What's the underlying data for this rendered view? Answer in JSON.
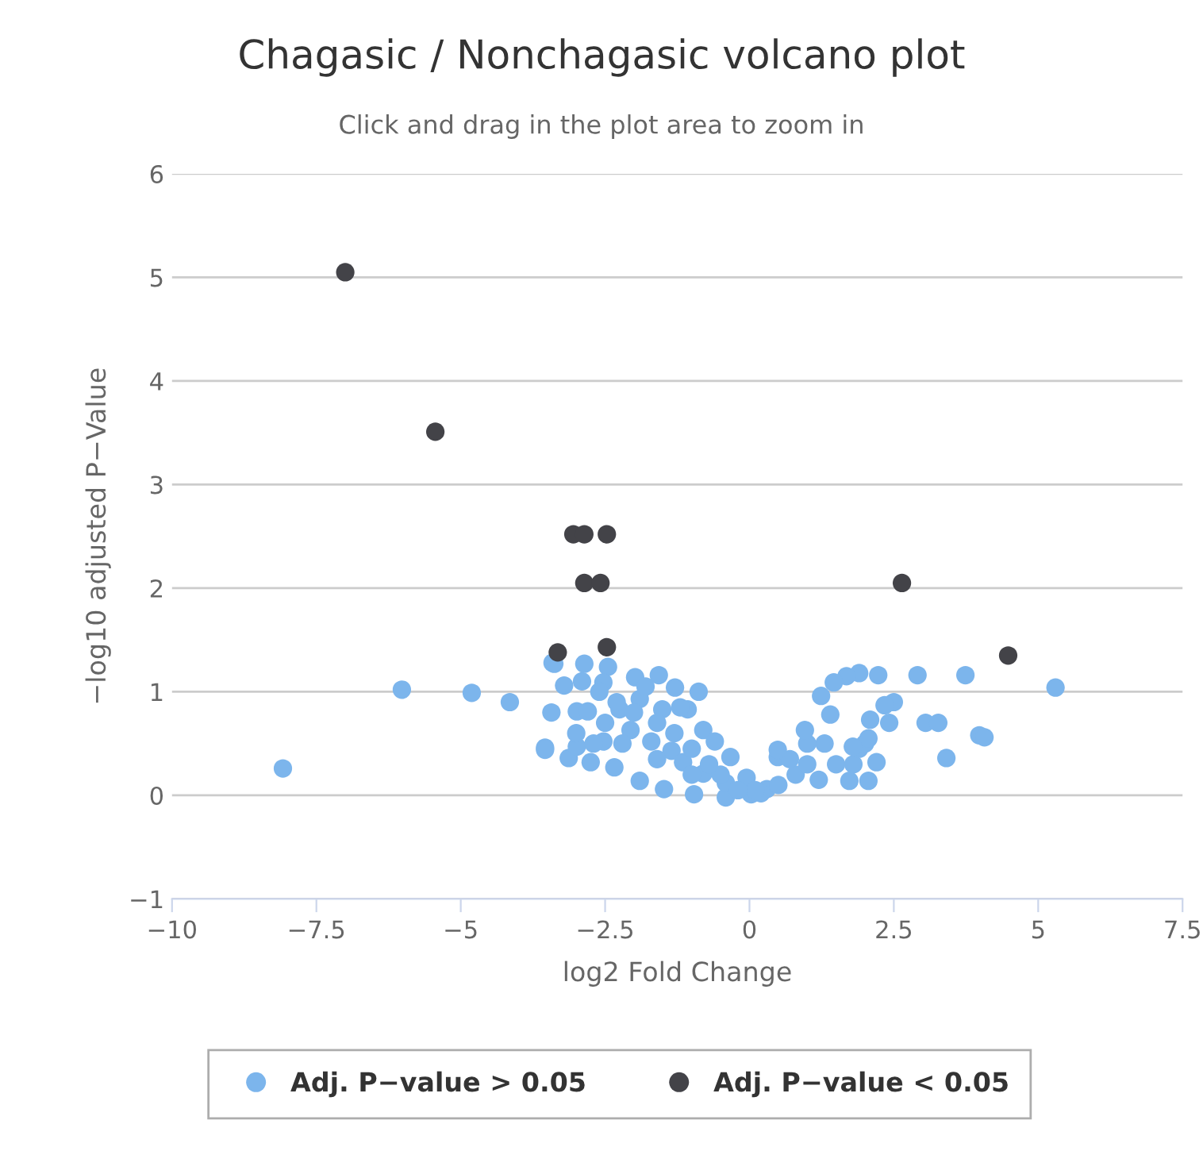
{
  "chart_data": {
    "type": "scatter",
    "title": "Chagasic / Nonchagasic volcano plot",
    "subtitle": "Click and drag in the plot area to zoom in",
    "xlabel": "log2 Fold Change",
    "ylabel": "−log10 adjusted P−Value",
    "xlim": [
      -10,
      7.5
    ],
    "xticks": [
      {
        "value": -10,
        "label": "−10"
      },
      {
        "value": -7.5,
        "label": "−7.5"
      },
      {
        "value": -5,
        "label": "−5"
      },
      {
        "value": -2.5,
        "label": "−2.5"
      },
      0,
      2.5,
      5,
      7.5
    ],
    "ylim": [
      -1,
      6
    ],
    "yticks": [
      {
        "value": -1,
        "label": "−1"
      },
      0,
      1,
      2,
      3,
      4,
      5,
      6
    ],
    "grid": "y",
    "legend": "bottom",
    "marker": "circle",
    "series": [
      {
        "name": "Adj. P−value > 0.05",
        "color": "#7cb5ec",
        "x": [
          -8.08,
          -6.02,
          -4.81,
          -4.15,
          -3.54,
          -3.43,
          -3.38,
          -3.41,
          -3.21,
          -3.54,
          -2.86,
          -2.45,
          -1.98,
          -1.57,
          -1.29,
          -1.07,
          -0.8,
          -0.6,
          -0.33,
          -0.05,
          0.03,
          0.3,
          0.49,
          -3.13,
          -2.75,
          -2.34,
          -1.9,
          -1.48,
          -0.96,
          -0.41,
          -2.99,
          -2.8,
          -2.53,
          -2.25,
          -2.06,
          -1.7,
          -1.35,
          -1.15,
          -0.8,
          -0.41,
          -1.51,
          -1.9,
          -2.53,
          -2.99,
          -0.88,
          0.5,
          0.8,
          1.0,
          1.2,
          1.5,
          1.3,
          1.0,
          0.7,
          1.8,
          1.9,
          2.0,
          0.2,
          0.1,
          -0.2,
          -0.5,
          -0.7,
          -1.0,
          -1.3,
          -1.6,
          -2.0,
          -2.3,
          -2.6,
          -1.8,
          -1.2,
          -2.2,
          -2.5,
          -1.6,
          -1.0,
          -2.7,
          -3.0,
          -2.9,
          5.3,
          3.98,
          4.07,
          3.74,
          2.91,
          2.23,
          1.9,
          1.68,
          1.46,
          1.24,
          2.5,
          2.34,
          2.09,
          2.42,
          3.05,
          3.27,
          3.41,
          1.4,
          1.73,
          2.06,
          2.2,
          2.06,
          1.79,
          0.96,
          0.49
        ],
        "values": [
          0.26,
          1.02,
          0.99,
          0.9,
          0.46,
          0.8,
          1.27,
          1.28,
          1.06,
          0.44,
          1.27,
          1.24,
          1.14,
          1.16,
          1.04,
          0.83,
          0.63,
          0.52,
          0.37,
          0.17,
          0.01,
          0.06,
          0.37,
          0.36,
          0.32,
          0.27,
          0.14,
          0.06,
          0.01,
          -0.02,
          0.81,
          0.81,
          1.09,
          0.83,
          0.63,
          0.52,
          0.43,
          0.32,
          0.21,
          0.12,
          0.83,
          0.93,
          0.52,
          0.47,
          1.0,
          0.1,
          0.2,
          0.3,
          0.15,
          0.3,
          0.5,
          0.5,
          0.35,
          0.3,
          0.45,
          0.5,
          0.02,
          0.05,
          0.05,
          0.2,
          0.3,
          0.45,
          0.6,
          0.7,
          0.8,
          0.9,
          1.0,
          1.05,
          0.85,
          0.5,
          0.7,
          0.35,
          0.2,
          0.5,
          0.6,
          1.1,
          1.04,
          0.58,
          0.56,
          1.16,
          1.16,
          1.16,
          1.18,
          1.15,
          1.09,
          0.96,
          0.9,
          0.87,
          0.73,
          0.7,
          0.7,
          0.7,
          0.36,
          0.78,
          0.14,
          0.14,
          0.32,
          0.55,
          0.47,
          0.63,
          0.44
        ]
      },
      {
        "name": "Adj. P−value < 0.05",
        "color": "#434348",
        "x": [
          -7.0,
          -5.44,
          -3.05,
          -2.86,
          -2.47,
          -2.86,
          -2.58,
          -3.32,
          -2.47,
          2.64,
          4.48
        ],
        "values": [
          5.05,
          3.51,
          2.52,
          2.52,
          2.52,
          2.05,
          2.05,
          1.38,
          1.43,
          2.05,
          1.35
        ]
      }
    ]
  }
}
